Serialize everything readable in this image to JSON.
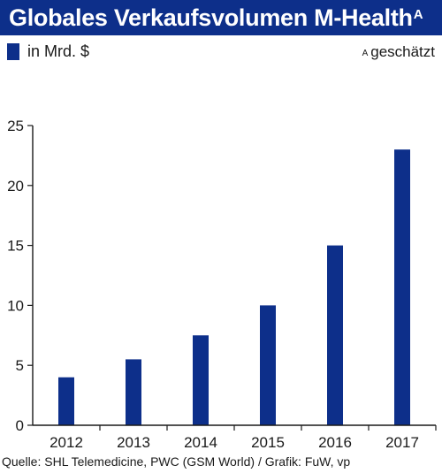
{
  "header": {
    "title": "Globales Verkaufsvolumen M-Health",
    "title_marker": "A"
  },
  "legend": {
    "label": "in Mrd. $",
    "color": "#0d2f8a"
  },
  "footnote": {
    "marker": "A",
    "text": "geschätzt"
  },
  "source": "Quelle: SHL Telemedicine, PWC (GSM World) / Grafik: FuW, vp",
  "chart_data": {
    "type": "bar",
    "title": "Globales Verkaufsvolumen M-Health",
    "categories": [
      "2012",
      "2013",
      "2014",
      "2015",
      "2016",
      "2017"
    ],
    "series": [
      {
        "name": "in Mrd. $",
        "values": [
          4,
          5.5,
          7.5,
          10,
          15,
          23
        ]
      }
    ],
    "xlabel": "",
    "ylabel": "",
    "ylim": [
      0,
      25
    ],
    "yticks": [
      0,
      5,
      10,
      15,
      20,
      25
    ],
    "grid": false,
    "legend_position": "top-left",
    "bar_color": "#0d2f8a"
  }
}
